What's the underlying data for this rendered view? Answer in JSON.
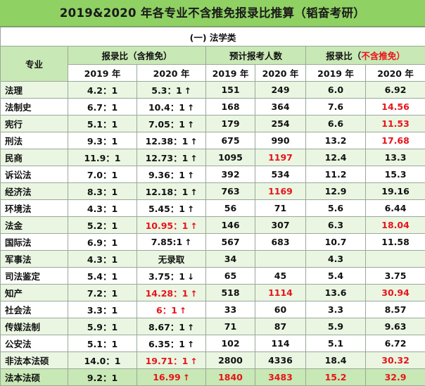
{
  "title": "2019&2020 年各专业不含推免报录比推算（韬奋考研）",
  "section": "(一) 法学类",
  "headers": {
    "major": "专业",
    "ratio_incl": "报录比（含推免）",
    "applicants": "预计报考人数",
    "ratio_excl_prefix": "报录比（",
    "ratio_excl_red": "不含推免",
    "ratio_excl_suffix": "）"
  },
  "years": [
    "2019 年",
    "2020 年",
    "2019 年",
    "2020 年",
    "2019 年",
    "2020 年"
  ],
  "accent_red": "#e8141a",
  "header_green": "#c8e8b5",
  "title_green": "#8fd163",
  "rows": [
    {
      "major": "法理",
      "r19": "4.2：1",
      "r20": "5.3：1",
      "arrow": "↑",
      "r20_red": false,
      "a19": "151",
      "a20": "249",
      "a20_red": false,
      "e19": "6.0",
      "e20": "6.92",
      "e20_red": false
    },
    {
      "major": "法制史",
      "r19": "6.7：1",
      "r20": "10.4：1",
      "arrow": "↑",
      "r20_red": false,
      "a19": "168",
      "a20": "364",
      "a20_red": false,
      "e19": "7.6",
      "e20": "14.56",
      "e20_red": true
    },
    {
      "major": "宪行",
      "r19": "5.1：1",
      "r20": "7.05：1",
      "arrow": "↑",
      "r20_red": false,
      "a19": "179",
      "a20": "254",
      "a20_red": false,
      "e19": "6.6",
      "e20": "11.53",
      "e20_red": true
    },
    {
      "major": "刑法",
      "r19": "9.3：1",
      "r20": "12.38：1",
      "arrow": "↑",
      "r20_red": false,
      "a19": "675",
      "a20": "990",
      "a20_red": false,
      "e19": "13.2",
      "e20": "17.68",
      "e20_red": true
    },
    {
      "major": "民商",
      "r19": "11.9：1",
      "r20": "12.73：1",
      "arrow": "↑",
      "r20_red": false,
      "a19": "1095",
      "a20": "1197",
      "a20_red": true,
      "e19": "12.4",
      "e20": "13.3",
      "e20_red": false
    },
    {
      "major": "诉讼法",
      "r19": "7.0：1",
      "r20": "9.36：1",
      "arrow": "↑",
      "r20_red": false,
      "a19": "392",
      "a20": "534",
      "a20_red": false,
      "e19": "11.2",
      "e20": "15.3",
      "e20_red": false
    },
    {
      "major": "经济法",
      "r19": "8.3：1",
      "r20": "12.18：1",
      "arrow": "↑",
      "r20_red": false,
      "a19": "763",
      "a20": "1169",
      "a20_red": true,
      "e19": "12.9",
      "e20": "19.16",
      "e20_red": false
    },
    {
      "major": "环境法",
      "r19": "4.3：1",
      "r20": "5.45：1",
      "arrow": "↑",
      "r20_red": false,
      "a19": "56",
      "a20": "71",
      "a20_red": false,
      "e19": "5.6",
      "e20": "6.44",
      "e20_red": false
    },
    {
      "major": "法金",
      "r19": "5.2：1",
      "r20": "10.95：1",
      "arrow": "↑",
      "r20_red": true,
      "a19": "146",
      "a20": "307",
      "a20_red": false,
      "e19": "6.3",
      "e20": "18.04",
      "e20_red": true
    },
    {
      "major": "国际法",
      "r19": "6.9：1",
      "r20": "7.85:1",
      "arrow": "↑",
      "r20_red": false,
      "a19": "567",
      "a20": "683",
      "a20_red": false,
      "e19": "10.7",
      "e20": "11.58",
      "e20_red": false
    },
    {
      "major": "军事法",
      "r19": "4.3：1",
      "r20": "无录取",
      "arrow": "",
      "r20_red": false,
      "a19": "34",
      "a20": "",
      "a20_red": false,
      "e19": "4.3",
      "e20": "",
      "e20_red": false
    },
    {
      "major": "司法鉴定",
      "r19": "5.4：1",
      "r20": "3.75：1",
      "arrow": "↓",
      "r20_red": false,
      "a19": "65",
      "a20": "45",
      "a20_red": false,
      "e19": "5.4",
      "e20": "3.75",
      "e20_red": false
    },
    {
      "major": "知产",
      "r19": "7.2：1",
      "r20": "14.28：1",
      "arrow": "↑",
      "r20_red": true,
      "a19": "518",
      "a20": "1114",
      "a20_red": true,
      "e19": "13.6",
      "e20": "30.94",
      "e20_red": true
    },
    {
      "major": "社会法",
      "r19": "3.3：1",
      "r20": "6：1",
      "arrow": "↑",
      "r20_red": true,
      "a19": "33",
      "a20": "60",
      "a20_red": false,
      "e19": "3.3",
      "e20": "8.57",
      "e20_red": false
    },
    {
      "major": "传媒法制",
      "r19": "5.9：1",
      "r20": "8.67：1",
      "arrow": "↑",
      "r20_red": false,
      "a19": "71",
      "a20": "87",
      "a20_red": false,
      "e19": "5.9",
      "e20": "9.63",
      "e20_red": false
    },
    {
      "major": "公安法",
      "r19": "5.1：1",
      "r20": "6.35：1",
      "arrow": "↑",
      "r20_red": false,
      "a19": "102",
      "a20": "114",
      "a20_red": false,
      "e19": "5.1",
      "e20": "6.72",
      "e20_red": false
    },
    {
      "major": "非法本法硕",
      "r19": "14.0：1",
      "r20": "19.71：1",
      "arrow": "↑",
      "r20_red": true,
      "a19": "2800",
      "a20": "4336",
      "a20_red": false,
      "e19": "18.4",
      "e20": "30.32",
      "e20_red": true
    },
    {
      "major": "法本法硕",
      "r19": "9.2：1",
      "r20": "16.99",
      "arrow": "↑",
      "r20_red": true,
      "a19": "1840",
      "a20": "3483",
      "a20_red": true,
      "a19_red": true,
      "e19": "15.2",
      "e20": "32.9",
      "e20_red": true,
      "e19_red": true
    }
  ]
}
